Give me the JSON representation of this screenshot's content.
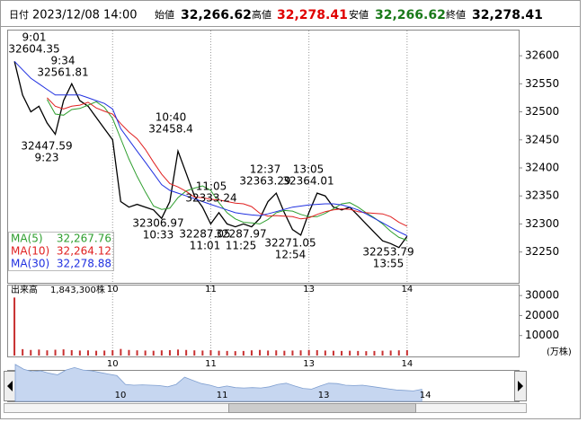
{
  "header": {
    "date_label": "日付",
    "datetime": "2023/12/08 14:00",
    "open_label": "始値",
    "open": "32,266.62",
    "high_label": "高値",
    "high": "32,278.41",
    "low_label": "安値",
    "low": "32,266.62",
    "close_label": "終値",
    "close": "32,278.41"
  },
  "chart_data": [
    {
      "type": "line",
      "categories": [
        null,
        null,
        null,
        null,
        null,
        null,
        null,
        null,
        null,
        null,
        null,
        null,
        "10",
        null,
        null,
        null,
        null,
        null,
        null,
        null,
        null,
        null,
        null,
        null,
        "11",
        null,
        null,
        null,
        null,
        null,
        null,
        null,
        null,
        null,
        null,
        null,
        "13",
        null,
        null,
        null,
        null,
        null,
        null,
        null,
        null,
        null,
        null,
        null,
        "14",
        null,
        null,
        null,
        null,
        null,
        null,
        null,
        null,
        null,
        null,
        null
      ],
      "ylim": [
        32195,
        32645
      ],
      "yticks": [
        32250,
        32300,
        32350,
        32400,
        32450,
        32500,
        32550,
        32600
      ],
      "grid": false,
      "series": [
        {
          "color": "#000000",
          "values": [
            32590,
            32530,
            32500,
            32510,
            32480,
            32460,
            32520,
            32550,
            32520,
            32510,
            32490,
            32470,
            32450,
            32340,
            32330,
            32335,
            32330,
            32325,
            32310,
            32340,
            32430,
            32390,
            32350,
            32330,
            32300,
            32320,
            32300,
            32295,
            32300,
            32295,
            32310,
            32340,
            32355,
            32320,
            32290,
            32280,
            32320,
            32355,
            32350,
            32330,
            32325,
            32330,
            32315,
            32300,
            32285,
            32270,
            32265,
            32258,
            32278,
            null,
            null,
            null,
            null,
            null,
            null,
            null,
            null,
            null,
            null,
            null
          ]
        },
        {
          "name": "MA(5)",
          "color": "#2e9e2e",
          "legend_value": "32,267.76",
          "values": [
            null,
            null,
            null,
            null,
            32522,
            32496,
            32494,
            32504,
            32506,
            32512,
            32518,
            32508,
            32488,
            32452,
            32416,
            32385,
            32357,
            32332,
            32326,
            32328,
            32347,
            32359,
            32364,
            32368,
            32360,
            32338,
            32320,
            32309,
            32303,
            32302,
            32300,
            32308,
            32320,
            32324,
            32323,
            32317,
            32313,
            32313,
            32319,
            32327,
            32336,
            32338,
            32330,
            32320,
            32311,
            32300,
            32287,
            32276,
            32271,
            null,
            null,
            null,
            null,
            null,
            null,
            null,
            null,
            null,
            null,
            null
          ]
        },
        {
          "name": "MA(10)",
          "color": "#e02020",
          "legend_value": "32,264.12",
          "values": [
            null,
            null,
            null,
            null,
            32525,
            32510,
            32505,
            32510,
            32512,
            32517,
            32507,
            32501,
            32496,
            32479,
            32464,
            32452,
            32433,
            32410,
            32389,
            32372,
            32366,
            32358,
            32348,
            32347,
            32344,
            32343,
            32340,
            32337,
            32336,
            32331,
            32319,
            32314,
            32315,
            32314,
            32313,
            32309,
            32311,
            32317,
            32322,
            32325,
            32327,
            32326,
            32322,
            32320,
            32319,
            32318,
            32313,
            32303,
            32296,
            null,
            null,
            null,
            null,
            null,
            null,
            null,
            null,
            null,
            null,
            null
          ]
        },
        {
          "name": "MA(30)",
          "color": "#2030e0",
          "legend_value": "32,278.88",
          "values": [
            32590,
            32575,
            32560,
            32550,
            32540,
            32530,
            32530,
            32530,
            32530,
            32525,
            32520,
            32515,
            32505,
            32470,
            32450,
            32430,
            32410,
            32390,
            32370,
            32360,
            32355,
            32350,
            32345,
            32340,
            32335,
            32330,
            32325,
            32320,
            32318,
            32316,
            32315,
            32318,
            32322,
            32326,
            32330,
            32332,
            32334,
            32335,
            32336,
            32336,
            32334,
            32330,
            32325,
            32318,
            32310,
            32302,
            32294,
            32286,
            32279,
            null,
            null,
            null,
            null,
            null,
            null,
            null,
            null,
            null,
            null,
            null
          ]
        }
      ],
      "annotations": [
        {
          "time": "9:01",
          "price": 32604.35
        },
        {
          "time": "9:34",
          "price": 32561.81
        },
        {
          "time": "9:23",
          "price": 32447.59
        },
        {
          "time": "10:40",
          "price": 32458.4
        },
        {
          "time": "10:33",
          "price": 32306.97
        },
        {
          "time": "11:05",
          "price": 32333.24
        },
        {
          "time": "11:01",
          "price": 32287.05
        },
        {
          "time": "11:25",
          "price": 32287.97
        },
        {
          "time": "12:37",
          "price": 32363.29
        },
        {
          "time": "13:05",
          "price": 32364.01
        },
        {
          "time": "12:54",
          "price": 32271.05
        },
        {
          "time": "13:55",
          "price": 32253.79
        }
      ]
    },
    {
      "type": "bar",
      "title": "出来高",
      "total": "1,843,300株",
      "y_unit": "(万株)",
      "color": "#c83030",
      "categories": [
        null,
        null,
        null,
        null,
        null,
        null,
        null,
        null,
        null,
        null,
        null,
        null,
        "10",
        null,
        null,
        null,
        null,
        null,
        null,
        null,
        null,
        null,
        null,
        null,
        "11",
        null,
        null,
        null,
        null,
        null,
        null,
        null,
        null,
        null,
        null,
        null,
        "13",
        null,
        null,
        null,
        null,
        null,
        null,
        null,
        null,
        null,
        null,
        null,
        "14",
        null,
        null,
        null,
        null,
        null,
        null,
        null,
        null,
        null,
        null,
        null
      ],
      "ylim": [
        0,
        35000
      ],
      "yticks": [
        10000,
        20000,
        30000
      ],
      "values": [
        29000,
        3200,
        2800,
        3000,
        2600,
        2900,
        3100,
        2700,
        2500,
        2600,
        2400,
        2500,
        2700,
        3300,
        2800,
        2600,
        2500,
        2400,
        2600,
        2700,
        3000,
        2800,
        2600,
        2500,
        2700,
        2400,
        2300,
        2200,
        2300,
        2600,
        2800,
        2500,
        2600,
        2400,
        2500,
        2600,
        2800,
        2700,
        2500,
        2400,
        2300,
        2400,
        2300,
        2200,
        2300,
        2400,
        2500,
        2600,
        2700,
        null,
        null,
        null,
        null,
        null,
        null,
        null,
        null,
        null,
        null,
        null
      ]
    }
  ]
}
